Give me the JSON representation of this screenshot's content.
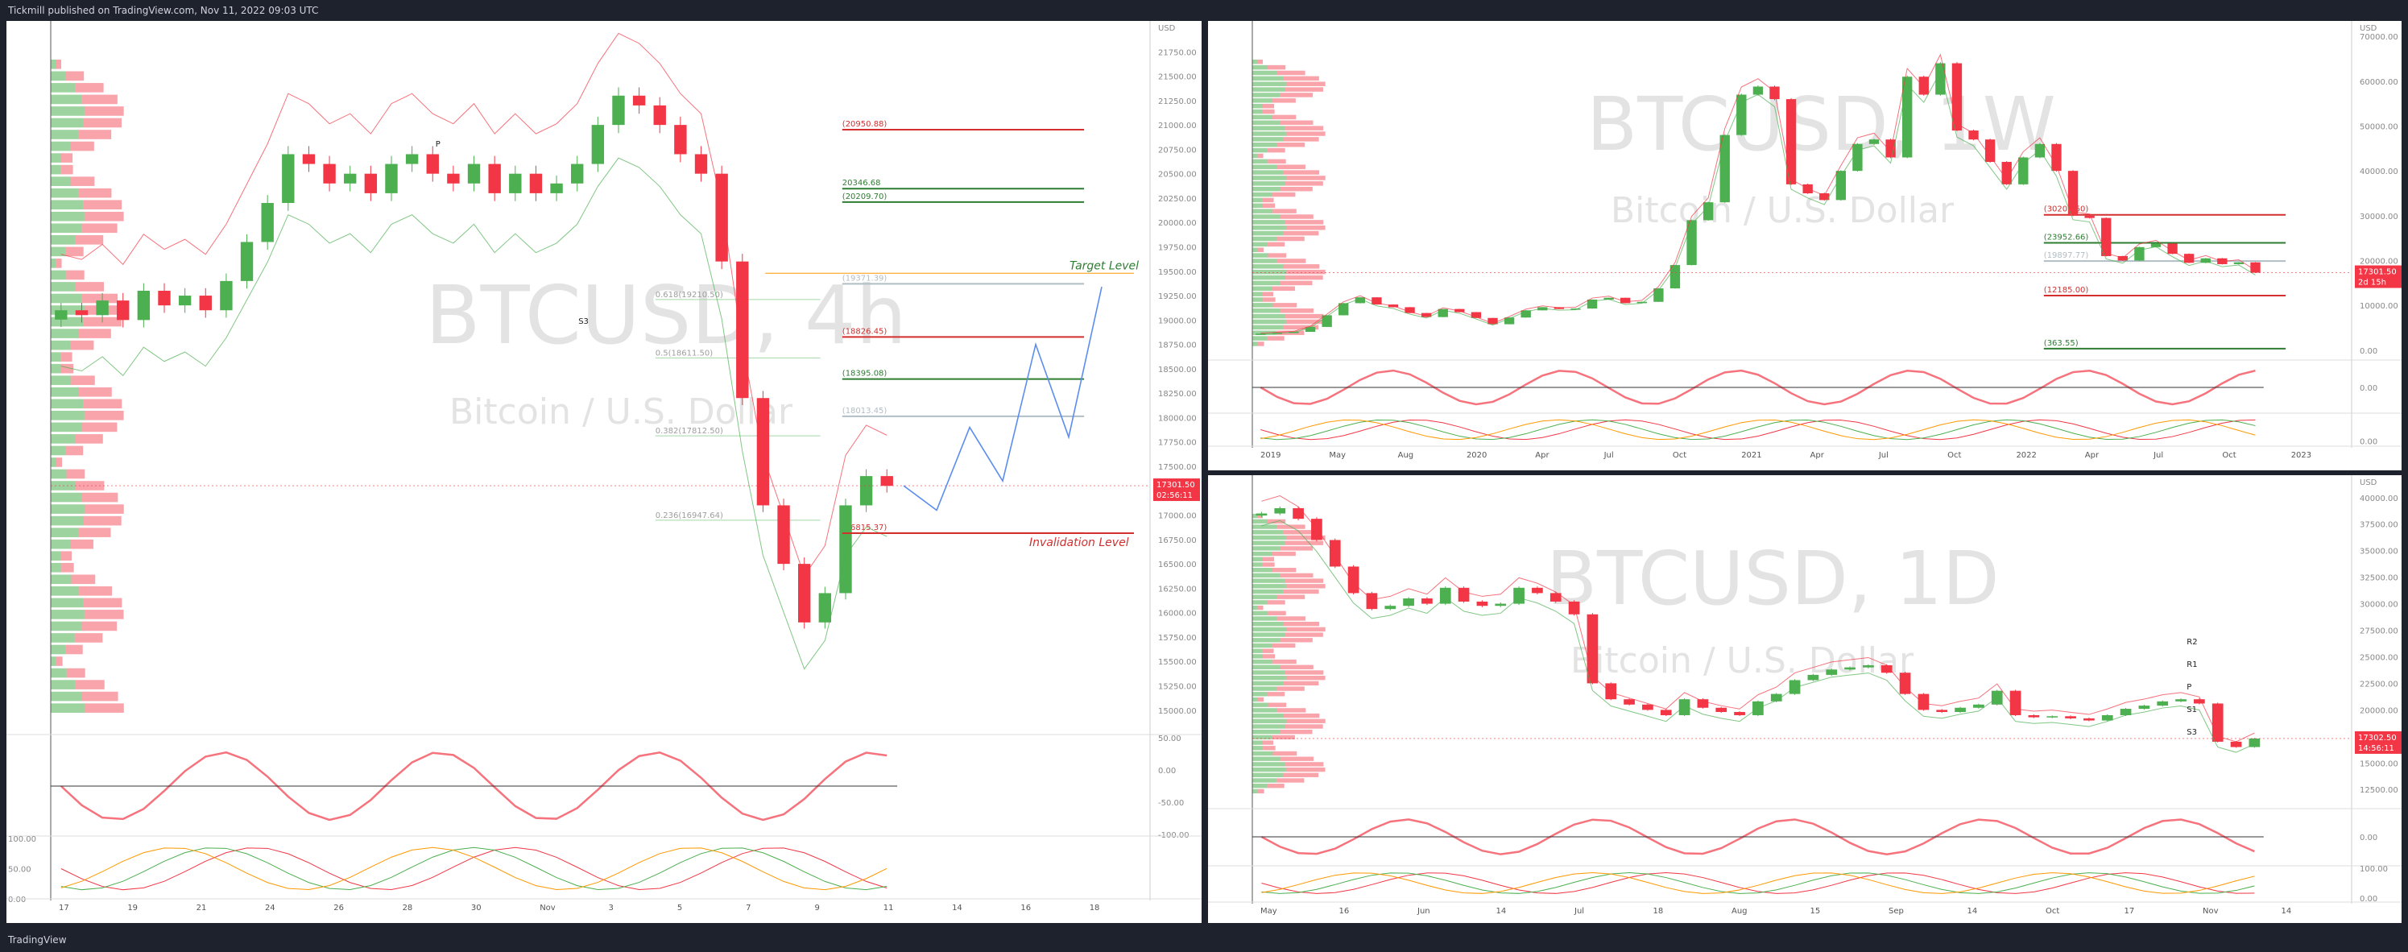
{
  "header": {
    "published_text": "Tickmill published on TradingView.com, Nov 11, 2022 09:03 UTC"
  },
  "footer": {
    "brand": "TradingView"
  },
  "colors": {
    "up": "#4caf50",
    "down": "#f23645",
    "price_tag": "#f23645",
    "blue": "#5b8def",
    "magenta": "#e040fb",
    "orange": "#ff9800"
  },
  "chart_data": [
    {
      "id": "4h",
      "type": "candlestick",
      "watermark_title": "BTCUSD, 4h",
      "watermark_subtitle": "Bitcoin / U.S. Dollar",
      "currency": "USD",
      "ylim": [
        14800,
        22000
      ],
      "y_ticks": [
        "21750.00",
        "21500.00",
        "21250.00",
        "21000.00",
        "20750.00",
        "20500.00",
        "20250.00",
        "20000.00",
        "19750.00",
        "19500.00",
        "19250.00",
        "19000.00",
        "18750.00",
        "18500.00",
        "18250.00",
        "18000.00",
        "17750.00",
        "17500.00",
        "17250.00",
        "17000.00",
        "16750.00",
        "16500.00",
        "16250.00",
        "16000.00",
        "15750.00",
        "15500.00",
        "15250.00",
        "15000.00"
      ],
      "x_ticks": [
        "17",
        "19",
        "21",
        "24",
        "26",
        "28",
        "30",
        "Nov",
        "3",
        "5",
        "7",
        "9",
        "11",
        "14",
        "16",
        "18"
      ],
      "last_price": "17301.50",
      "countdown": "02:56:11",
      "target_label": "Target Level",
      "invalidation_label": "Invalidation Level",
      "levels": [
        {
          "label": "(20950.88)",
          "value": 20950.88
        },
        {
          "label": "(20209.70)",
          "value": 20209.7
        },
        {
          "label": "(19371.39)",
          "value": 19371.39
        },
        {
          "label": "(18826.45)",
          "value": 18826.45
        },
        {
          "label": "(18395.08)",
          "value": 18395.08
        },
        {
          "label": "(18013.45)",
          "value": 18013.45
        },
        {
          "label": "(16815.37)",
          "value": 16815.37
        },
        {
          "label": "20346.68",
          "value": 20346.68
        }
      ],
      "fib_levels": [
        {
          "label": "0.618(19210.50)",
          "value": 19210.5
        },
        {
          "label": "0.5(18611.50)",
          "value": 18611.5
        },
        {
          "label": "0.382(17812.50)",
          "value": 17812.5
        },
        {
          "label": "0.236(16947.64)",
          "value": 16947.64
        }
      ],
      "pivot_labels": [
        "P",
        "S3"
      ],
      "projection": [
        17301,
        17050,
        17900,
        17350,
        18750,
        17800,
        19340
      ],
      "osc_ticks": [
        "50.00",
        "0.00",
        "-50.00",
        "-100.00"
      ],
      "stoch_ticks": [
        "100.00",
        "50.00",
        "0.00"
      ],
      "series": [
        {
          "name": "close",
          "values": [
            19100,
            19050,
            19200,
            19000,
            19300,
            19150,
            19250,
            19100,
            19400,
            19800,
            20200,
            20700,
            20600,
            20400,
            20500,
            20300,
            20600,
            20700,
            20500,
            20400,
            20600,
            20300,
            20500,
            20300,
            20400,
            20600,
            21000,
            21300,
            21200,
            21000,
            20700,
            20500,
            19600,
            18200,
            17100,
            16500,
            15900,
            16200,
            17100,
            17400,
            17300
          ]
        }
      ]
    },
    {
      "id": "1W",
      "type": "candlestick",
      "watermark_title": "BTCUSD, 1W",
      "watermark_subtitle": "Bitcoin / U.S. Dollar",
      "currency": "USD",
      "ylim": [
        -2000,
        72000
      ],
      "y_ticks": [
        "70000.00",
        "60000.00",
        "50000.00",
        "40000.00",
        "30000.00",
        "20000.00",
        "10000.00",
        "0.00"
      ],
      "x_ticks": [
        "2019",
        "May",
        "Aug",
        "2020",
        "Apr",
        "Jul",
        "Oct",
        "2021",
        "Apr",
        "Jul",
        "Oct",
        "2022",
        "Apr",
        "Jul",
        "Oct",
        "2023"
      ],
      "last_price": "17301.50",
      "countdown": "2d 15h",
      "levels": [
        {
          "label": "(30205.50)",
          "value": 30205.5
        },
        {
          "label": "(23952.66)",
          "value": 23952.66
        },
        {
          "label": "(19897.77)",
          "value": 19897.77
        },
        {
          "label": "(12185.00)",
          "value": 12185.0
        },
        {
          "label": "(363.55)",
          "value": 363.55
        }
      ],
      "osc_ticks": [
        "0.00"
      ],
      "stoch_ticks": [
        "0.00"
      ],
      "series": [
        {
          "name": "close",
          "values": [
            3700,
            3900,
            4100,
            5200,
            7800,
            10500,
            11800,
            10200,
            9600,
            8300,
            7400,
            9200,
            8500,
            7200,
            5800,
            7300,
            8900,
            9600,
            9200,
            9300,
            11300,
            11700,
            10500,
            10800,
            13800,
            19000,
            29000,
            33000,
            48000,
            57000,
            58800,
            56000,
            37000,
            35000,
            33500,
            40000,
            46000,
            47000,
            43000,
            61000,
            57000,
            64000,
            49000,
            47000,
            42000,
            37000,
            43000,
            46000,
            40000,
            30000,
            29500,
            21000,
            20000,
            23000,
            23800,
            21500,
            19500,
            20500,
            19200,
            19600,
            17300
          ]
        }
      ]
    },
    {
      "id": "1D",
      "type": "candlestick",
      "watermark_title": "BTCUSD, 1D",
      "watermark_subtitle": "Bitcoin / U.S. Dollar",
      "currency": "USD",
      "ylim": [
        11000,
        41500
      ],
      "y_ticks": [
        "40000.00",
        "37500.00",
        "35000.00",
        "32500.00",
        "30000.00",
        "27500.00",
        "25000.00",
        "22500.00",
        "20000.00",
        "17500.00",
        "15000.00",
        "12500.00"
      ],
      "x_ticks": [
        "May",
        "16",
        "Jun",
        "14",
        "Jul",
        "18",
        "Aug",
        "15",
        "Sep",
        "14",
        "Oct",
        "17",
        "Nov",
        "14"
      ],
      "last_price": "17302.50",
      "countdown": "14:56:11",
      "pivot_labels": [
        "R2",
        "R1",
        "P",
        "S1",
        "S3"
      ],
      "osc_ticks": [
        "0.00"
      ],
      "stoch_ticks": [
        "100.00",
        "0.00"
      ],
      "series": [
        {
          "name": "close",
          "values": [
            38500,
            39000,
            38000,
            36000,
            33500,
            31000,
            29500,
            29800,
            30500,
            30000,
            31500,
            30200,
            29800,
            30000,
            31500,
            31000,
            30200,
            29000,
            22500,
            21000,
            20500,
            20000,
            19500,
            21000,
            20200,
            19800,
            19500,
            20800,
            21500,
            22800,
            23300,
            23800,
            24000,
            24200,
            23500,
            21500,
            20000,
            19800,
            20200,
            20500,
            21800,
            19500,
            19300,
            19400,
            19200,
            19000,
            19500,
            20100,
            20400,
            20800,
            21000,
            20600,
            17000,
            16500,
            17300
          ]
        }
      ]
    }
  ]
}
